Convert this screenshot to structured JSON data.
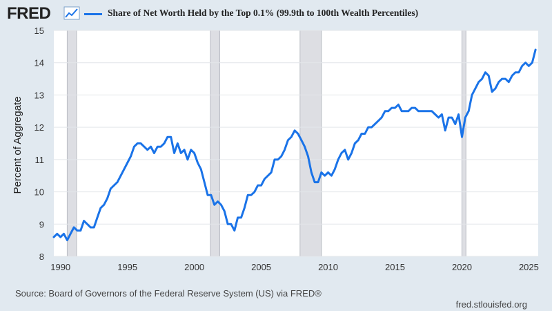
{
  "logo": {
    "text": "FRED"
  },
  "chart_data": {
    "type": "line",
    "title": "Share of Net Worth Held by the Top 0.1% (99.9th to 100th Wealth Percentiles)",
    "xlabel": "",
    "ylabel": "Percent of Aggregate",
    "xlim": [
      1989.5,
      2025.7
    ],
    "ylim": [
      8,
      15
    ],
    "yticks": [
      8,
      9,
      10,
      11,
      12,
      13,
      14,
      15
    ],
    "xticks": [
      1990,
      1995,
      2000,
      2005,
      2010,
      2015,
      2020,
      2025
    ],
    "grid": true,
    "recessions": [
      [
        1990.5,
        1991.2
      ],
      [
        2001.2,
        2001.9
      ],
      [
        2007.9,
        2009.5
      ],
      [
        2020.0,
        2020.3
      ]
    ],
    "series": [
      {
        "name": "Share of Net Worth Held by the Top 0.1% (99.9th to 100th Wealth Percentiles)",
        "color": "#1a73e8",
        "x": [
          1989.5,
          1989.75,
          1990.0,
          1990.25,
          1990.5,
          1990.75,
          1991.0,
          1991.25,
          1991.5,
          1991.75,
          1992.0,
          1992.25,
          1992.5,
          1992.75,
          1993.0,
          1993.25,
          1993.5,
          1993.75,
          1994.0,
          1994.25,
          1994.5,
          1994.75,
          1995.0,
          1995.25,
          1995.5,
          1995.75,
          1996.0,
          1996.25,
          1996.5,
          1996.75,
          1997.0,
          1997.25,
          1997.5,
          1997.75,
          1998.0,
          1998.25,
          1998.5,
          1998.75,
          1999.0,
          1999.25,
          1999.5,
          1999.75,
          2000.0,
          2000.25,
          2000.5,
          2000.75,
          2001.0,
          2001.25,
          2001.5,
          2001.75,
          2002.0,
          2002.25,
          2002.5,
          2002.75,
          2003.0,
          2003.25,
          2003.5,
          2003.75,
          2004.0,
          2004.25,
          2004.5,
          2004.75,
          2005.0,
          2005.25,
          2005.5,
          2005.75,
          2006.0,
          2006.25,
          2006.5,
          2006.75,
          2007.0,
          2007.25,
          2007.5,
          2007.75,
          2008.0,
          2008.25,
          2008.5,
          2008.75,
          2009.0,
          2009.25,
          2009.5,
          2009.75,
          2010.0,
          2010.25,
          2010.5,
          2010.75,
          2011.0,
          2011.25,
          2011.5,
          2011.75,
          2012.0,
          2012.25,
          2012.5,
          2012.75,
          2013.0,
          2013.25,
          2013.5,
          2013.75,
          2014.0,
          2014.25,
          2014.5,
          2014.75,
          2015.0,
          2015.25,
          2015.5,
          2015.75,
          2016.0,
          2016.25,
          2016.5,
          2016.75,
          2017.0,
          2017.25,
          2017.5,
          2017.75,
          2018.0,
          2018.25,
          2018.5,
          2018.75,
          2019.0,
          2019.25,
          2019.5,
          2019.75,
          2020.0,
          2020.25,
          2020.5,
          2020.75,
          2021.0,
          2021.25,
          2021.5,
          2021.75,
          2022.0,
          2022.25,
          2022.5,
          2022.75,
          2023.0,
          2023.25,
          2023.5,
          2023.75,
          2024.0,
          2024.25,
          2024.5,
          2024.75,
          2025.0,
          2025.25,
          2025.5
        ],
        "values": [
          8.6,
          8.7,
          8.6,
          8.7,
          8.5,
          8.7,
          8.9,
          8.8,
          8.8,
          9.1,
          9.0,
          8.9,
          8.9,
          9.2,
          9.5,
          9.6,
          9.8,
          10.1,
          10.2,
          10.3,
          10.5,
          10.7,
          10.9,
          11.1,
          11.4,
          11.5,
          11.5,
          11.4,
          11.3,
          11.4,
          11.2,
          11.4,
          11.4,
          11.5,
          11.7,
          11.7,
          11.2,
          11.5,
          11.2,
          11.3,
          11.0,
          11.3,
          11.2,
          10.9,
          10.7,
          10.3,
          9.9,
          9.9,
          9.6,
          9.7,
          9.6,
          9.4,
          9.0,
          9.0,
          8.8,
          9.2,
          9.2,
          9.5,
          9.9,
          9.9,
          10.0,
          10.2,
          10.2,
          10.4,
          10.5,
          10.6,
          11.0,
          11.0,
          11.1,
          11.3,
          11.6,
          11.7,
          11.9,
          11.8,
          11.6,
          11.4,
          11.1,
          10.6,
          10.3,
          10.3,
          10.6,
          10.5,
          10.6,
          10.5,
          10.7,
          11.0,
          11.2,
          11.3,
          11.0,
          11.2,
          11.5,
          11.6,
          11.8,
          11.8,
          12.0,
          12.0,
          12.1,
          12.2,
          12.3,
          12.5,
          12.5,
          12.6,
          12.6,
          12.7,
          12.5,
          12.5,
          12.5,
          12.6,
          12.6,
          12.5,
          12.5,
          12.5,
          12.5,
          12.5,
          12.4,
          12.3,
          12.4,
          11.9,
          12.3,
          12.3,
          12.1,
          12.4,
          11.7,
          12.3,
          12.5,
          13.0,
          13.2,
          13.4,
          13.5,
          13.7,
          13.6,
          13.1,
          13.2,
          13.4,
          13.5,
          13.5,
          13.4,
          13.6,
          13.7,
          13.7,
          13.9,
          14.0,
          13.9,
          14.0,
          14.4
        ]
      }
    ]
  },
  "source": {
    "text": "Source: Board of Governors of the Federal Reserve System (US) via FRED®"
  },
  "site": {
    "text": "fred.stlouisfed.org"
  }
}
